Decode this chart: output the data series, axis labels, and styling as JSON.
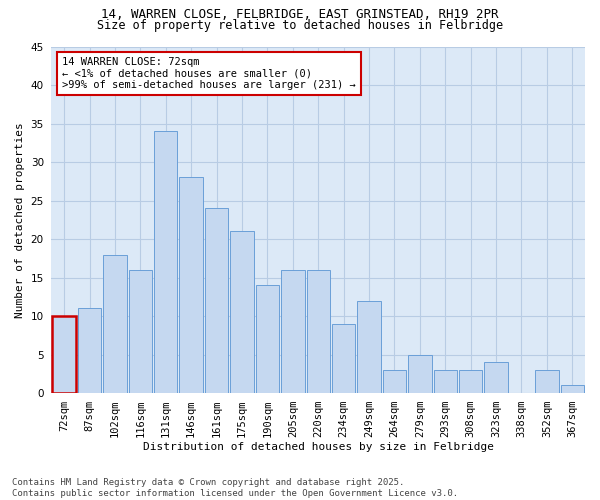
{
  "title_line1": "14, WARREN CLOSE, FELBRIDGE, EAST GRINSTEAD, RH19 2PR",
  "title_line2": "Size of property relative to detached houses in Felbridge",
  "xlabel": "Distribution of detached houses by size in Felbridge",
  "ylabel": "Number of detached properties",
  "categories": [
    "72sqm",
    "87sqm",
    "102sqm",
    "116sqm",
    "131sqm",
    "146sqm",
    "161sqm",
    "175sqm",
    "190sqm",
    "205sqm",
    "220sqm",
    "234sqm",
    "249sqm",
    "264sqm",
    "279sqm",
    "293sqm",
    "308sqm",
    "323sqm",
    "338sqm",
    "352sqm",
    "367sqm"
  ],
  "values": [
    10,
    11,
    18,
    16,
    34,
    28,
    24,
    21,
    14,
    16,
    16,
    9,
    12,
    3,
    5,
    3,
    3,
    4,
    0,
    3,
    1
  ],
  "bar_color": "#c5d8f0",
  "bar_edge_color": "#6a9fd8",
  "highlight_index": 0,
  "highlight_edge_color": "#cc0000",
  "annotation_title": "14 WARREN CLOSE: 72sqm",
  "annotation_line1": "← <1% of detached houses are smaller (0)",
  "annotation_line2": ">99% of semi-detached houses are larger (231) →",
  "annotation_box_facecolor": "#ffffff",
  "annotation_box_edgecolor": "#cc0000",
  "ylim": [
    0,
    45
  ],
  "yticks": [
    0,
    5,
    10,
    15,
    20,
    25,
    30,
    35,
    40,
    45
  ],
  "grid_color": "#b8cce4",
  "fig_bg_color": "#ffffff",
  "plot_bg_color": "#dce9f7",
  "footer_line1": "Contains HM Land Registry data © Crown copyright and database right 2025.",
  "footer_line2": "Contains public sector information licensed under the Open Government Licence v3.0.",
  "title_fontsize": 9,
  "subtitle_fontsize": 8.5,
  "xlabel_fontsize": 8,
  "ylabel_fontsize": 8,
  "tick_fontsize": 7.5,
  "footer_fontsize": 6.5,
  "ann_fontsize": 7.5
}
